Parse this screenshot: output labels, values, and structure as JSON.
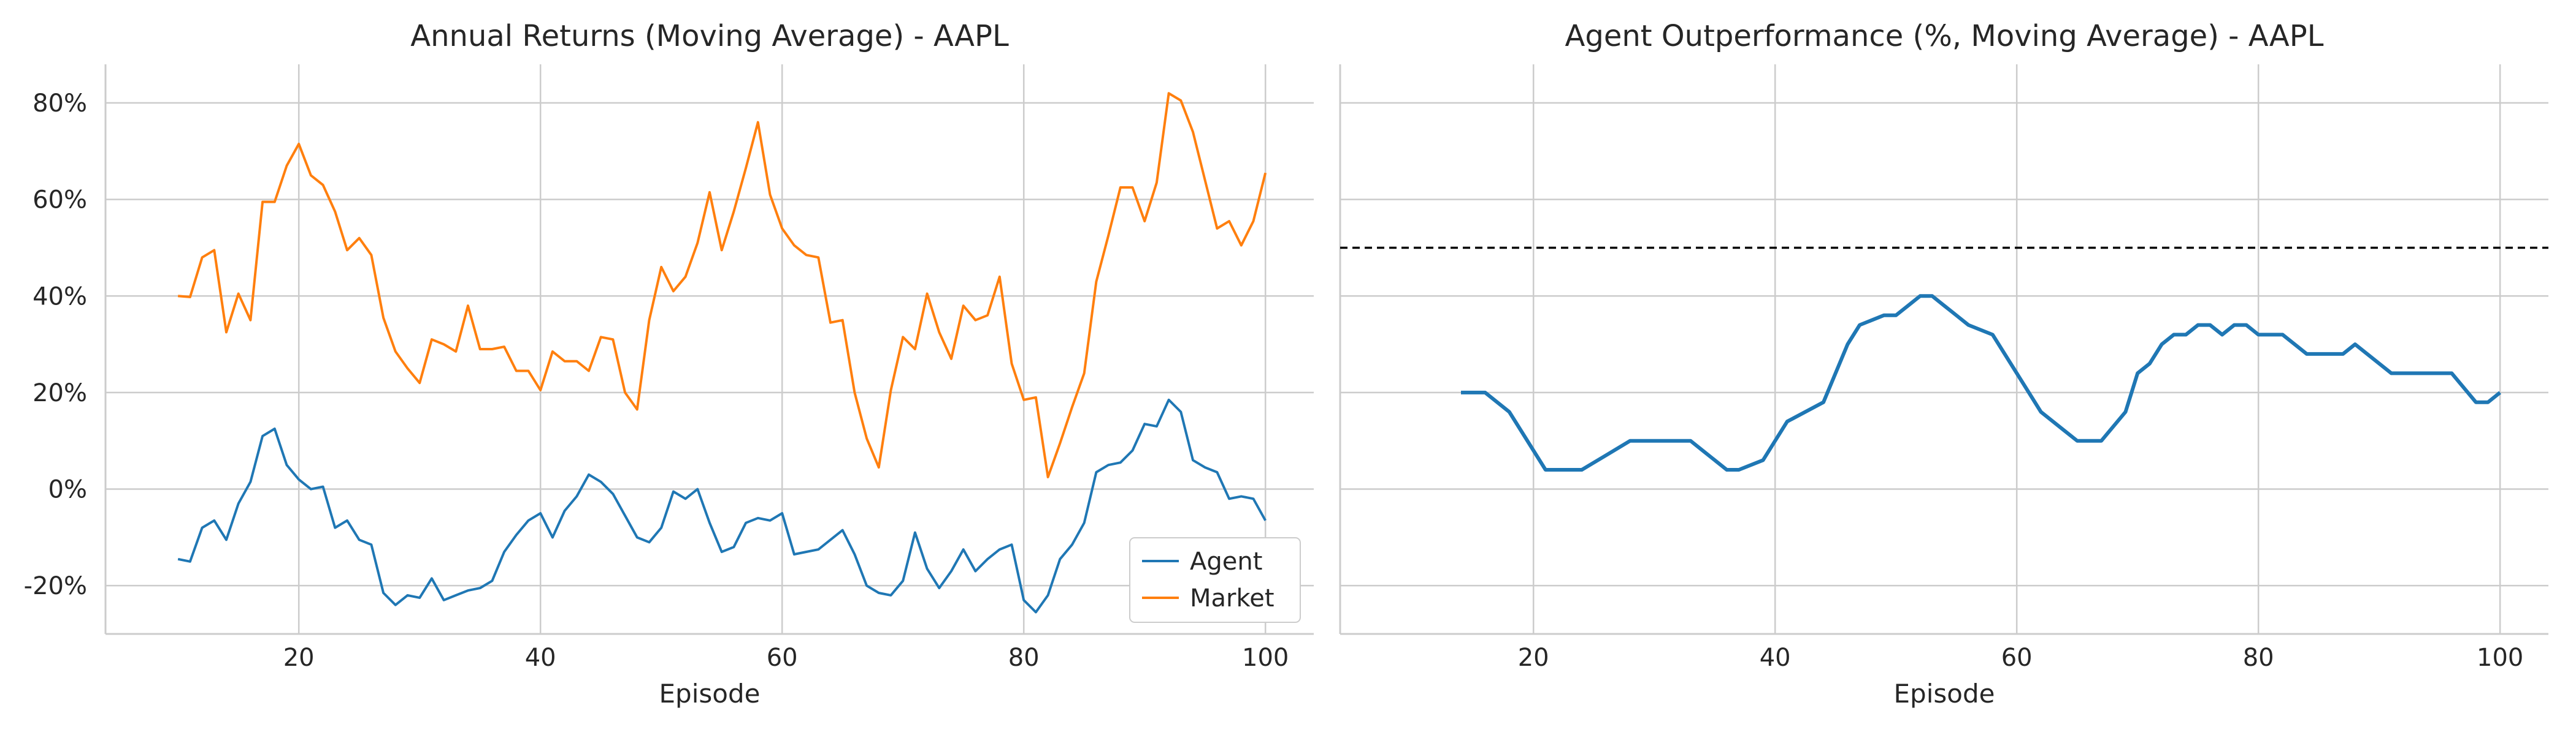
{
  "chart_data": [
    {
      "type": "line",
      "title": "Annual Returns (Moving Average) - AAPL",
      "xlabel": "Episode",
      "ylabel": "",
      "xlim": [
        4,
        104
      ],
      "ylim": [
        -30,
        88
      ],
      "xticks": [
        20,
        40,
        60,
        80,
        100
      ],
      "yticks": [
        -20,
        0,
        20,
        40,
        60,
        80
      ],
      "ytick_labels": [
        "-20%",
        "0%",
        "20%",
        "40%",
        "60%",
        "80%"
      ],
      "grid": true,
      "legend": "bottom-right",
      "x": [
        10,
        11,
        12,
        13,
        14,
        15,
        16,
        17,
        18,
        19,
        20,
        21,
        22,
        23,
        24,
        25,
        26,
        27,
        28,
        29,
        30,
        31,
        32,
        33,
        34,
        35,
        36,
        37,
        38,
        39,
        40,
        41,
        42,
        43,
        44,
        45,
        46,
        47,
        48,
        49,
        50,
        51,
        52,
        53,
        54,
        55,
        56,
        57,
        58,
        59,
        60,
        61,
        62,
        63,
        64,
        65,
        66,
        67,
        68,
        69,
        70,
        71,
        72,
        73,
        74,
        75,
        76,
        77,
        78,
        79,
        80,
        81,
        82,
        83,
        84,
        85,
        86,
        87,
        88,
        89,
        90,
        91,
        92,
        93,
        94,
        95,
        96,
        97,
        98,
        99,
        100
      ],
      "series": [
        {
          "name": "Agent",
          "color": "#1f77b4",
          "values": [
            -14.5,
            -15,
            -8,
            -6.5,
            -10.5,
            -3,
            1.5,
            11,
            12.5,
            5,
            2,
            0,
            0.5,
            -8,
            -6.5,
            -10.5,
            -11.5,
            -21.5,
            -24,
            -22,
            -22.5,
            -18.5,
            -23,
            -22,
            -21,
            -20.5,
            -19,
            -13,
            -9.5,
            -6.5,
            -5,
            -10,
            -4.5,
            -1.5,
            3,
            1.5,
            -1,
            -5.5,
            -10,
            -11,
            -8,
            -0.5,
            -2,
            0,
            -7,
            -13,
            -12,
            -7,
            -6,
            -6.5,
            -5,
            -13.5,
            -13,
            -12.5,
            -10.5,
            -8.5,
            -13.5,
            -20,
            -21.5,
            -22,
            -19,
            -9,
            -16.5,
            -20.5,
            -17,
            -12.5,
            -17,
            -14.5,
            -12.5,
            -11.5,
            -23,
            -25.5,
            -22,
            -14.5,
            -11.5,
            -7,
            3.5,
            5,
            5.5,
            8,
            13.5,
            13,
            18.5,
            16,
            6,
            4.5,
            3.5,
            -2,
            -1.5,
            -2,
            -6.5
          ]
        },
        {
          "name": "Market",
          "color": "#ff7f0e",
          "values": [
            40,
            39.8,
            48,
            49.5,
            32.5,
            40.5,
            35,
            59.5,
            59.5,
            67,
            71.5,
            65,
            63,
            57.5,
            49.5,
            52,
            48.5,
            35.5,
            28.5,
            25,
            22,
            31,
            30,
            28.5,
            38,
            29,
            29,
            29.5,
            24.5,
            24.5,
            20.5,
            28.5,
            26.5,
            26.5,
            24.5,
            31.5,
            31,
            20,
            16.5,
            35,
            46,
            41,
            44,
            51,
            61.5,
            49.5,
            57.5,
            66.5,
            76,
            61,
            54,
            50.5,
            48.5,
            48,
            34.5,
            35,
            20,
            10.5,
            4.5,
            20.5,
            31.5,
            29,
            40.5,
            32.5,
            27,
            38,
            35,
            36,
            44,
            26,
            18.5,
            19,
            2.5,
            9.5,
            17,
            24,
            43,
            52.5,
            62.5,
            62.5,
            55.5,
            63.5,
            82,
            80.5,
            74,
            64,
            54,
            55.5,
            50.5,
            55.5,
            65.5
          ]
        }
      ]
    },
    {
      "type": "line",
      "title": "Agent Outperformance (%, Moving Average) - AAPL",
      "xlabel": "Episode",
      "ylabel": "",
      "xlim": [
        4,
        104
      ],
      "ylim": [
        -30,
        88
      ],
      "xticks": [
        20,
        40,
        60,
        80,
        100
      ],
      "yticks": [
        -20,
        0,
        20,
        40,
        60,
        80
      ],
      "grid": true,
      "reference_line": {
        "y": 50,
        "style": "dashed",
        "color": "#000000"
      },
      "x": [
        14,
        16,
        18,
        19,
        20,
        21,
        22,
        24,
        26,
        28,
        30,
        31,
        32,
        33,
        34,
        36,
        37,
        39,
        41,
        44,
        46,
        47,
        49,
        50,
        51,
        52,
        53,
        54,
        55,
        56,
        58,
        59,
        60,
        61,
        62,
        64,
        65,
        67,
        69,
        70,
        71,
        72,
        73,
        74,
        75,
        76,
        77,
        78,
        79,
        80,
        82,
        84,
        85,
        86,
        87,
        88,
        89,
        90,
        91,
        92,
        93,
        94,
        96,
        98,
        99,
        100
      ],
      "series": [
        {
          "name": "",
          "color": "#1f77b4",
          "values": [
            20,
            20,
            16,
            12,
            8,
            4,
            4,
            4,
            7,
            10,
            10,
            10,
            10,
            10,
            8,
            4,
            4,
            6,
            14,
            18,
            30,
            34,
            36,
            36,
            38,
            40,
            40,
            38,
            36,
            34,
            32,
            28,
            24,
            20,
            16,
            12,
            10,
            10,
            16,
            24,
            26,
            30,
            32,
            32,
            34,
            34,
            32,
            34,
            34,
            32,
            32,
            28,
            28,
            28,
            28,
            30,
            28,
            26,
            24,
            24,
            24,
            24,
            24,
            18,
            18,
            20
          ]
        }
      ]
    }
  ]
}
